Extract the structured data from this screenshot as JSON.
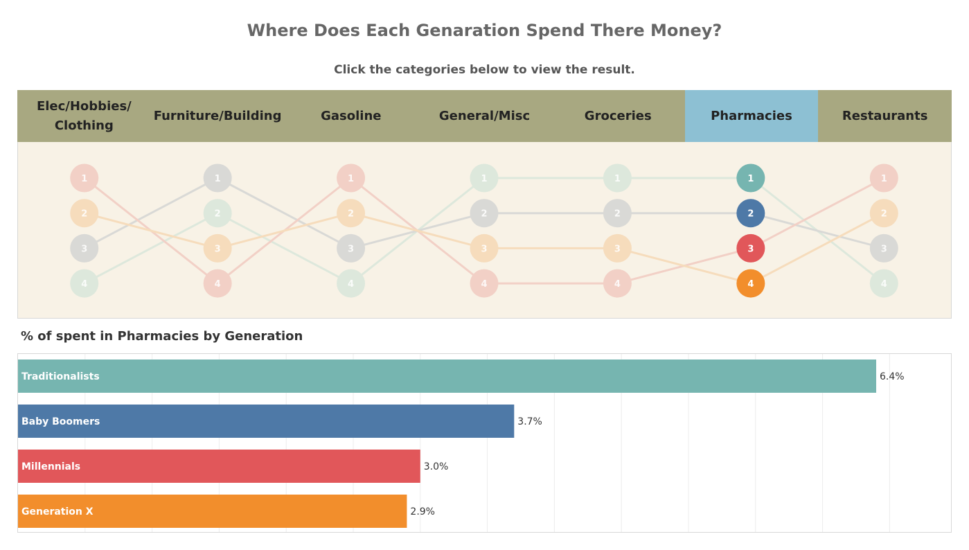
{
  "title": "Where Does Each Genaration Spend There Money?",
  "subtitle": "Click the categories below to view the result.",
  "categories": [
    {
      "label": "Elec/Hobbies/ Clothing",
      "active": false
    },
    {
      "label": "Furniture/Building",
      "active": false
    },
    {
      "label": "Gasoline",
      "active": false
    },
    {
      "label": "General/Misc",
      "active": false
    },
    {
      "label": "Groceries",
      "active": false
    },
    {
      "label": "Pharmacies",
      "active": true
    },
    {
      "label": "Restaurants",
      "active": false
    }
  ],
  "colors": {
    "Traditionalists": "#76b5b0",
    "Baby Boomers": "#4e79a7",
    "Millennials": "#e1575a",
    "Generation X": "#f28e2c",
    "Traditionalists_faded": "#dde8dc",
    "Baby Boomers_faded": "#d9d9d6",
    "Millennials_faded": "#f2d0c6",
    "Generation X_faded": "#f6dcbc",
    "header_bg": "#a8a881",
    "active_tab": "#8dc0d3",
    "panel_bg": "#f8f2e6"
  },
  "bar_title": "% of spent in Pharmacies by Generation",
  "chart_data": [
    {
      "type": "line",
      "description_kind": "bump",
      "categories": [
        "Elec/Hobbies/ Clothing",
        "Furniture/Building",
        "Gasoline",
        "General/Misc",
        "Groceries",
        "Pharmacies",
        "Restaurants"
      ],
      "highlighted_category": "Pharmacies",
      "series": [
        {
          "name": "Traditionalists",
          "ranks": [
            4,
            2,
            4,
            1,
            1,
            1,
            4
          ]
        },
        {
          "name": "Baby Boomers",
          "ranks": [
            3,
            1,
            3,
            2,
            2,
            2,
            3
          ]
        },
        {
          "name": "Millennials",
          "ranks": [
            1,
            4,
            1,
            4,
            4,
            3,
            1
          ]
        },
        {
          "name": "Generation X",
          "ranks": [
            2,
            3,
            2,
            3,
            3,
            4,
            2
          ]
        }
      ],
      "ylim": [
        1,
        4
      ]
    },
    {
      "type": "bar",
      "orientation": "horizontal",
      "categories": [
        "Traditionalists",
        "Baby Boomers",
        "Millennials",
        "Generation X"
      ],
      "values": [
        6.4,
        3.7,
        3.0,
        2.9
      ],
      "value_labels": [
        "6.4%",
        "3.7%",
        "3.0%",
        "2.9%"
      ],
      "xlim": [
        0,
        7
      ],
      "grid": true
    }
  ]
}
